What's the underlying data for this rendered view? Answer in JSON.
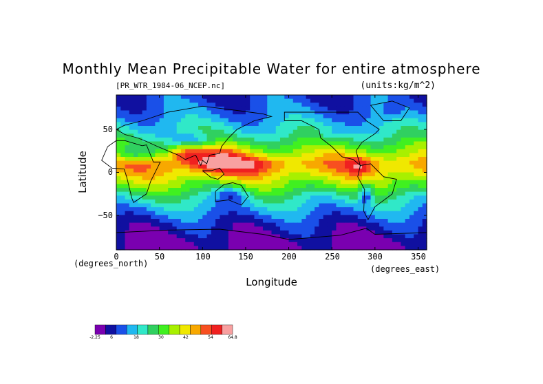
{
  "chart_data": {
    "type": "heatmap",
    "title": "Monthly Mean Precipitable Water for entire atmosphere",
    "subtitle_left": "[PR_WTR_1984-06_NCEP.nc]",
    "subtitle_right": "(units:kg/m^2)",
    "xlabel": "Longitude",
    "ylabel": "Latitude",
    "x_units": "(degrees_east)",
    "y_units": "(degrees_north)",
    "xlim": [
      0,
      360
    ],
    "ylim": [
      -90,
      90
    ],
    "x_ticks": [
      "0",
      "50",
      "100",
      "150",
      "200",
      "250",
      "300",
      "350"
    ],
    "y_ticks": [
      "50",
      "0",
      "−50"
    ],
    "latitude_bands": [
      {
        "lat": 85,
        "value": 9
      },
      {
        "lat": 65,
        "value": 14
      },
      {
        "lat": 45,
        "value": 22
      },
      {
        "lat": 25,
        "value": 36
      },
      {
        "lat": 10,
        "value": 48
      },
      {
        "lat": 0,
        "value": 44
      },
      {
        "lat": -15,
        "value": 34
      },
      {
        "lat": -30,
        "value": 22
      },
      {
        "lat": -45,
        "value": 14
      },
      {
        "lat": -60,
        "value": 7
      },
      {
        "lat": -75,
        "value": 3
      },
      {
        "lat": -85,
        "value": 0
      }
    ],
    "colorbar": {
      "tick_labels": [
        "-2.25",
        "6",
        "18",
        "30",
        "42",
        "54",
        "64.8"
      ],
      "colors": [
        "#7a00b0",
        "#1010a0",
        "#1a50e8",
        "#20b8f0",
        "#30e8c8",
        "#30d060",
        "#40f020",
        "#a8f000",
        "#f0e800",
        "#f8a800",
        "#f85020",
        "#f02020",
        "#f8a0a0"
      ]
    }
  }
}
